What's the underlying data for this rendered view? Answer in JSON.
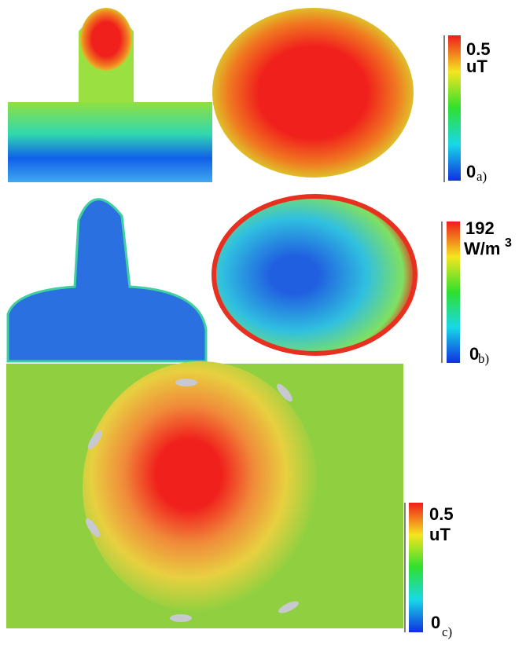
{
  "panels": [
    {
      "label": "a)",
      "colorbar": {
        "max": "0.5",
        "unit": "uT",
        "min": "0"
      }
    },
    {
      "label": "b)",
      "colorbar": {
        "max": "192",
        "unit": "W/m",
        "unit_superscript": "3",
        "min": "0"
      }
    },
    {
      "label": "c)",
      "colorbar": {
        "max": "0.5",
        "unit": "uT",
        "min": "0"
      }
    }
  ]
}
